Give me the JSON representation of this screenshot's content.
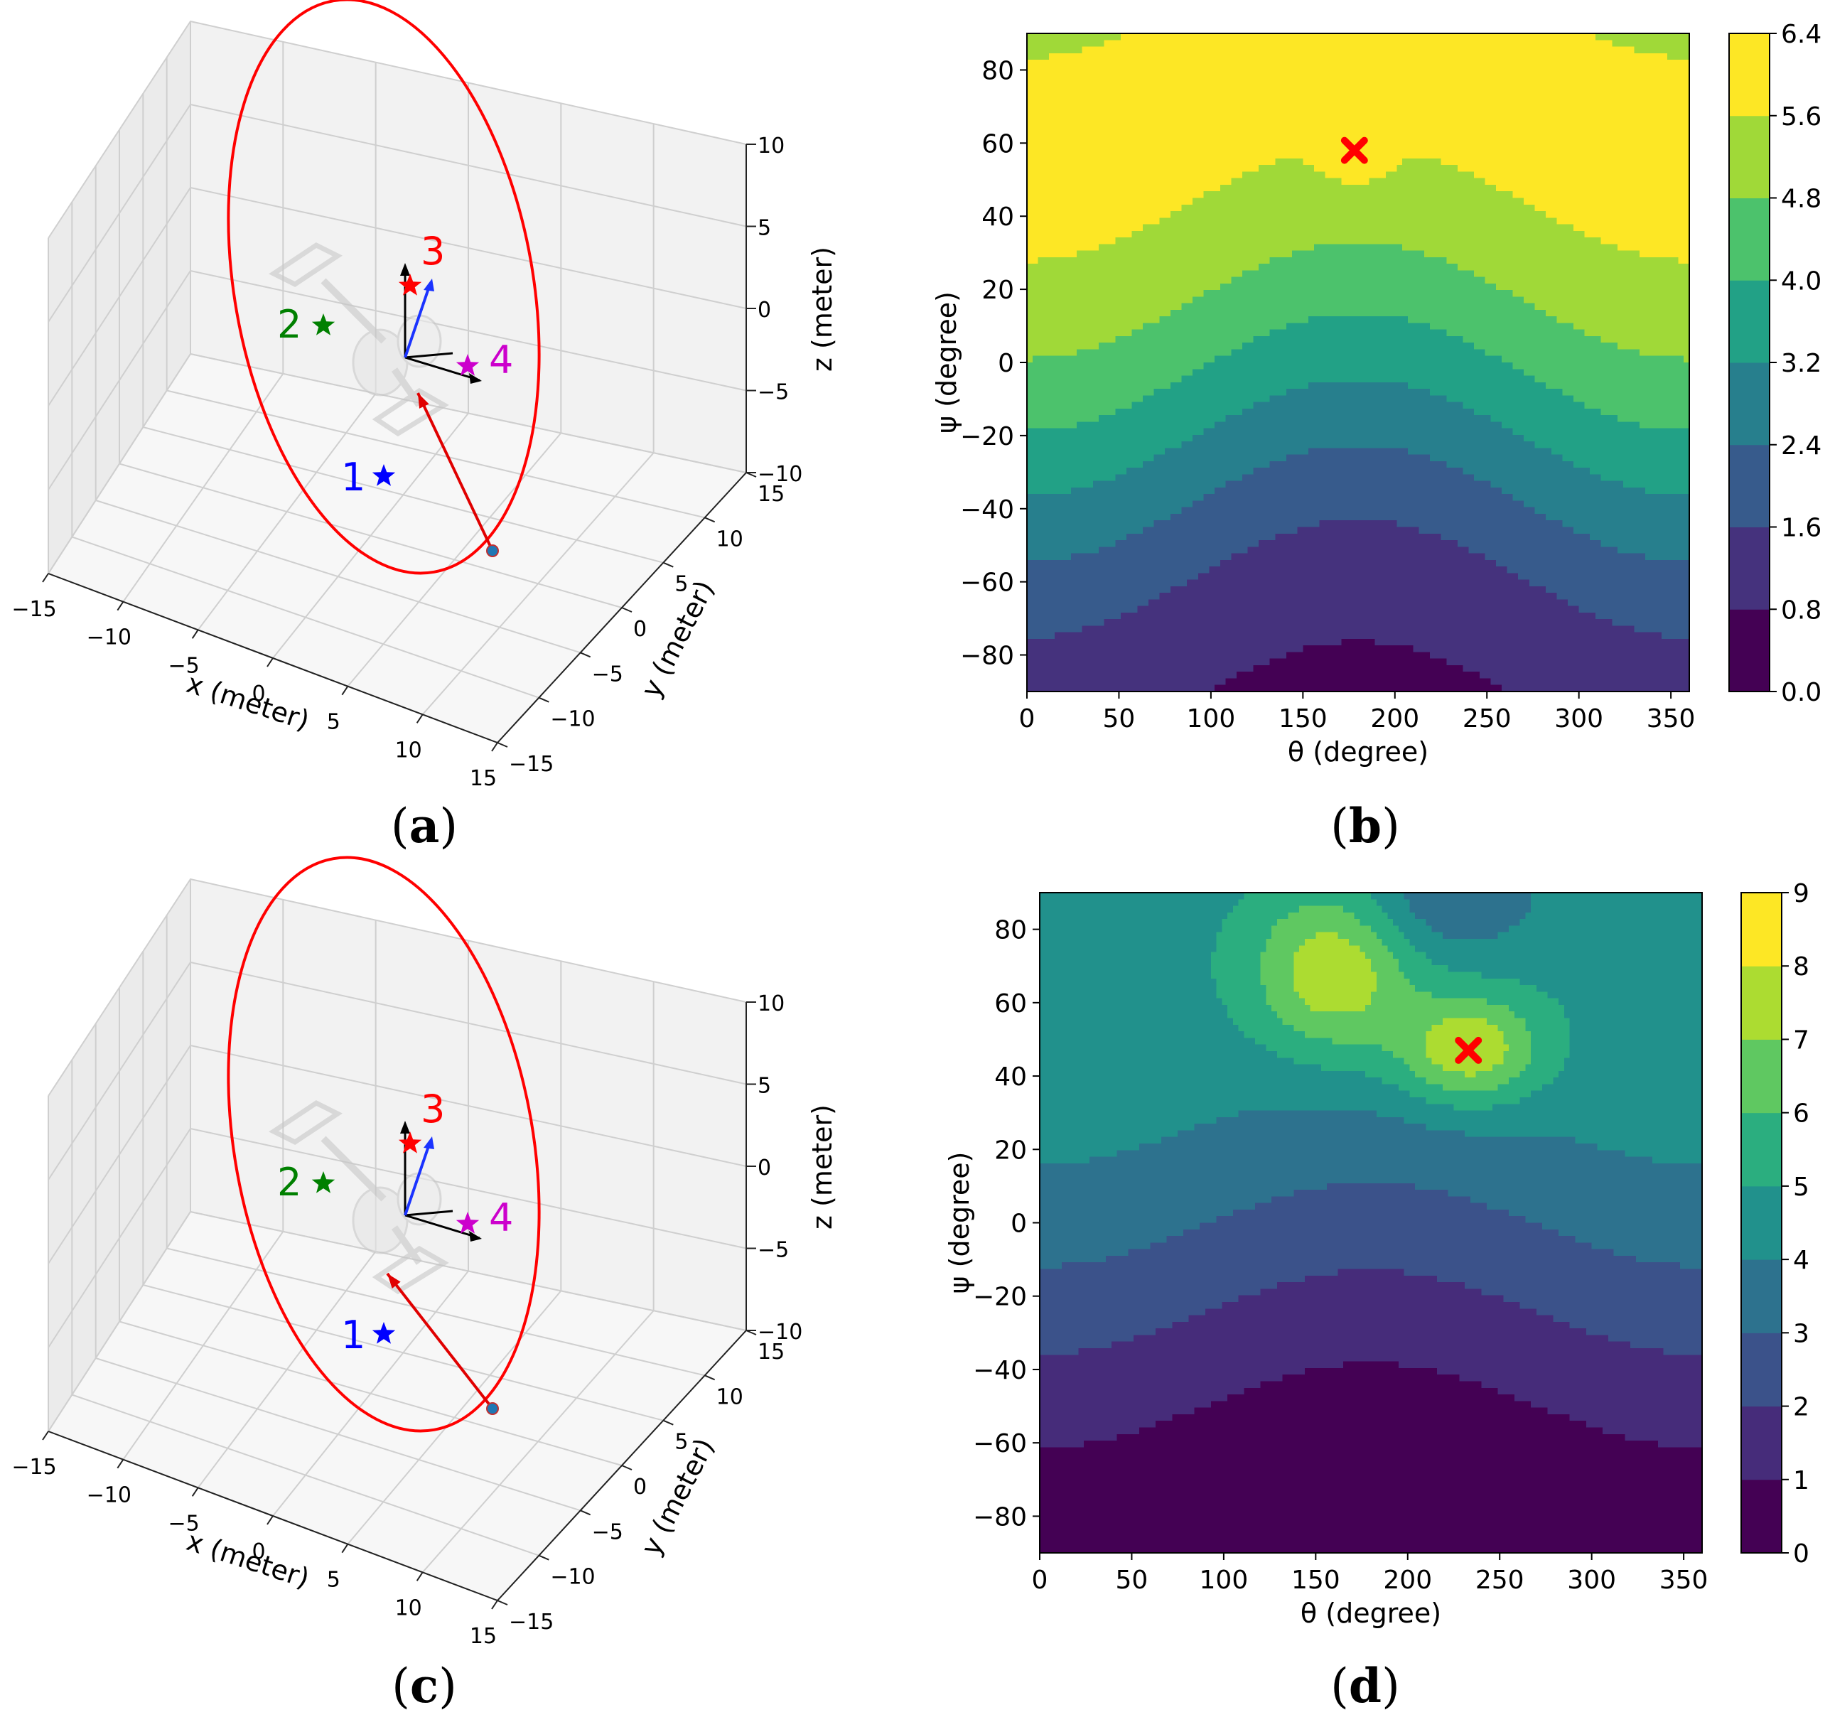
{
  "panels": {
    "a": {
      "label_open": "(",
      "label_letter": "a",
      "label_close": ")"
    },
    "b": {
      "label_open": "(",
      "label_letter": "b",
      "label_close": ")"
    },
    "c": {
      "label_open": "(",
      "label_letter": "c",
      "label_close": ")"
    },
    "d": {
      "label_open": "(",
      "label_letter": "d",
      "label_close": ")"
    }
  },
  "chart_data": [
    {
      "id": "a",
      "type": "scatter",
      "projection": "3d",
      "xlabel": "x (meter)",
      "ylabel": "y (meter)",
      "zlabel": "z (meter)",
      "xticks": [
        "−15",
        "−10",
        "−5",
        "0",
        "5",
        "10",
        "15"
      ],
      "yticks": [
        "−15",
        "−10",
        "−5",
        "0",
        "5",
        "10",
        "15"
      ],
      "zticks": [
        "−10",
        "−5",
        "0",
        "5",
        "10"
      ],
      "xlim": [
        -15,
        15
      ],
      "ylim": [
        -15,
        15
      ],
      "zlim": [
        -10,
        10
      ],
      "markers": [
        {
          "label": "1",
          "color": "#0000ff"
        },
        {
          "label": "2",
          "color": "#008000"
        },
        {
          "label": "3",
          "color": "#ff0000"
        },
        {
          "label": "4",
          "color": "#cc00cc"
        }
      ],
      "trajectory_color": "#ff0000",
      "grid": true
    },
    {
      "id": "b",
      "type": "heatmap",
      "subtype": "filled-contour",
      "xlabel": "θ (degree)",
      "ylabel": "ψ (degree)",
      "xlim": [
        0,
        360
      ],
      "ylim": [
        -90,
        90
      ],
      "xticks": [
        "0",
        "50",
        "100",
        "150",
        "200",
        "250",
        "300",
        "350"
      ],
      "yticks": [
        "80",
        "60",
        "40",
        "20",
        "0",
        "−20",
        "−40",
        "−60",
        "−80"
      ],
      "colorbar_ticks": [
        "6.4",
        "5.6",
        "4.8",
        "4.0",
        "3.2",
        "2.4",
        "1.6",
        "0.8",
        "0.0"
      ],
      "levels": [
        0.0,
        0.8,
        1.6,
        2.4,
        3.2,
        4.0,
        4.8,
        5.6,
        6.4
      ],
      "maximum": {
        "theta": 178,
        "psi": 58
      }
    },
    {
      "id": "c",
      "type": "scatter",
      "projection": "3d",
      "xlabel": "x (meter)",
      "ylabel": "y (meter)",
      "zlabel": "z (meter)",
      "xticks": [
        "−15",
        "−10",
        "−5",
        "0",
        "5",
        "10",
        "15"
      ],
      "yticks": [
        "−15",
        "−10",
        "−5",
        "0",
        "5",
        "10",
        "15"
      ],
      "zticks": [
        "−10",
        "−5",
        "0",
        "5",
        "10"
      ],
      "xlim": [
        -15,
        15
      ],
      "ylim": [
        -15,
        15
      ],
      "zlim": [
        -10,
        10
      ],
      "markers": [
        {
          "label": "1",
          "color": "#0000ff"
        },
        {
          "label": "2",
          "color": "#008000"
        },
        {
          "label": "3",
          "color": "#ff0000"
        },
        {
          "label": "4",
          "color": "#cc00cc"
        }
      ],
      "trajectory_color": "#ff0000",
      "grid": true
    },
    {
      "id": "d",
      "type": "heatmap",
      "subtype": "filled-contour",
      "xlabel": "θ (degree)",
      "ylabel": "ψ (degree)",
      "xlim": [
        0,
        360
      ],
      "ylim": [
        -90,
        90
      ],
      "xticks": [
        "0",
        "50",
        "100",
        "150",
        "200",
        "250",
        "300",
        "350"
      ],
      "yticks": [
        "80",
        "60",
        "40",
        "20",
        "0",
        "−20",
        "−40",
        "−60",
        "−80"
      ],
      "colorbar_ticks": [
        "9",
        "8",
        "7",
        "6",
        "5",
        "4",
        "3",
        "2",
        "1",
        "0"
      ],
      "levels": [
        0,
        1,
        2,
        3,
        4,
        5,
        6,
        7,
        8,
        9
      ],
      "maximum": {
        "theta": 233,
        "psi": 47
      }
    }
  ],
  "colors": {
    "viridis": [
      "#440154",
      "#472d7b",
      "#3b528b",
      "#2c728e",
      "#21918c",
      "#28ae80",
      "#5ec962",
      "#addc30",
      "#fde725"
    ]
  }
}
